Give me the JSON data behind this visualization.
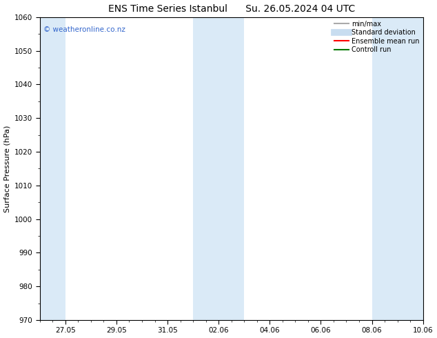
{
  "title1": "ENS Time Series Istanbul",
  "title2": "Su. 26.05.2024 04 UTC",
  "ylabel": "Surface Pressure (hPa)",
  "ylim": [
    970,
    1060
  ],
  "yticks": [
    970,
    980,
    990,
    1000,
    1010,
    1020,
    1030,
    1040,
    1050,
    1060
  ],
  "xtick_labels": [
    "27.05",
    "29.05",
    "31.05",
    "02.06",
    "04.06",
    "06.06",
    "08.06",
    "10.06"
  ],
  "start_date": "2024-05-26",
  "end_date": "2024-06-10",
  "background_color": "#ffffff",
  "plot_bg_color": "#ffffff",
  "shaded_color": "#daeaf7",
  "watermark_text": "© weatheronline.co.nz",
  "watermark_color": "#3366cc",
  "legend_items": [
    {
      "label": "min/max",
      "color": "#aaaaaa",
      "lw": 1.5,
      "style": "solid"
    },
    {
      "label": "Standard deviation",
      "color": "#c8ddf0",
      "lw": 7,
      "style": "solid"
    },
    {
      "label": "Ensemble mean run",
      "color": "#ff0000",
      "lw": 1.5,
      "style": "solid"
    },
    {
      "label": "Controll run",
      "color": "#007700",
      "lw": 1.5,
      "style": "solid"
    }
  ],
  "title_fontsize": 10,
  "ylabel_fontsize": 8,
  "tick_fontsize": 7.5,
  "weekend_shading": true,
  "shaded_days": [
    [
      "2024-05-26",
      "2024-05-27"
    ],
    [
      "2024-06-01",
      "2024-06-02"
    ],
    [
      "2024-06-08",
      "2024-06-09"
    ],
    [
      "2024-06-09",
      "2024-06-10"
    ]
  ]
}
